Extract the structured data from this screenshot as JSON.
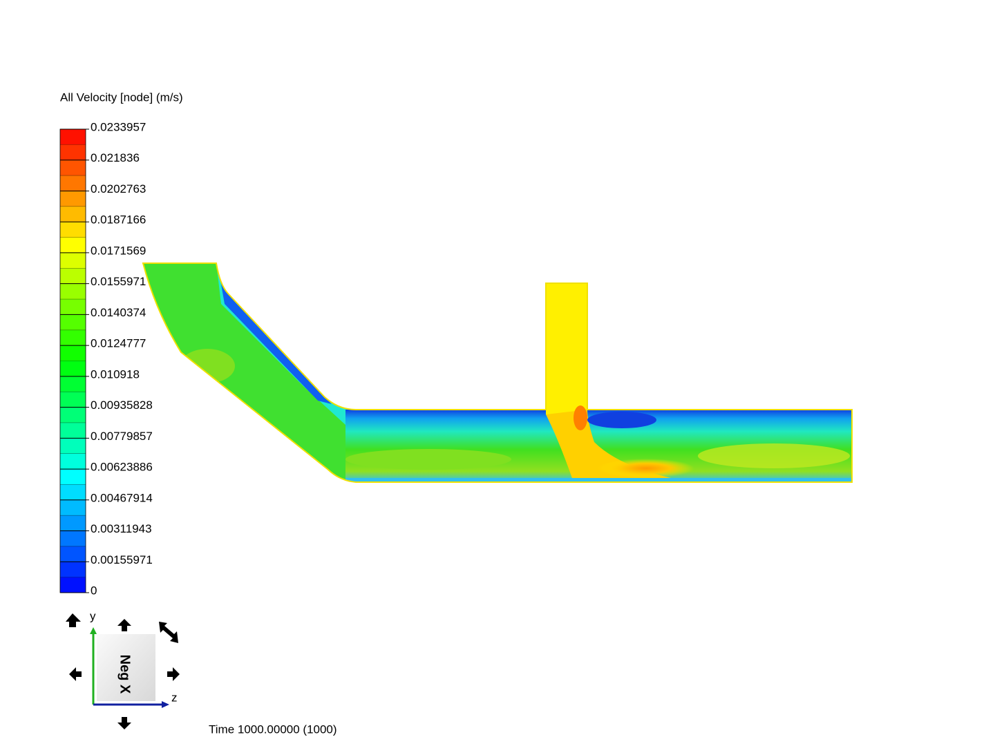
{
  "legend": {
    "title": "All Velocity [node] (m/s)",
    "labels": [
      "0.0233957",
      "0.021836",
      "0.0202763",
      "0.0187166",
      "0.0171569",
      "0.0155971",
      "0.0140374",
      "0.0124777",
      "0.010918",
      "0.00935828",
      "0.00779857",
      "0.00623886",
      "0.00467914",
      "0.00311943",
      "0.00155971",
      "0"
    ]
  },
  "triad": {
    "y_label": "y",
    "z_label": "z",
    "cube_label": "Neg X"
  },
  "time": "Time 1000.00000 (1000)"
}
